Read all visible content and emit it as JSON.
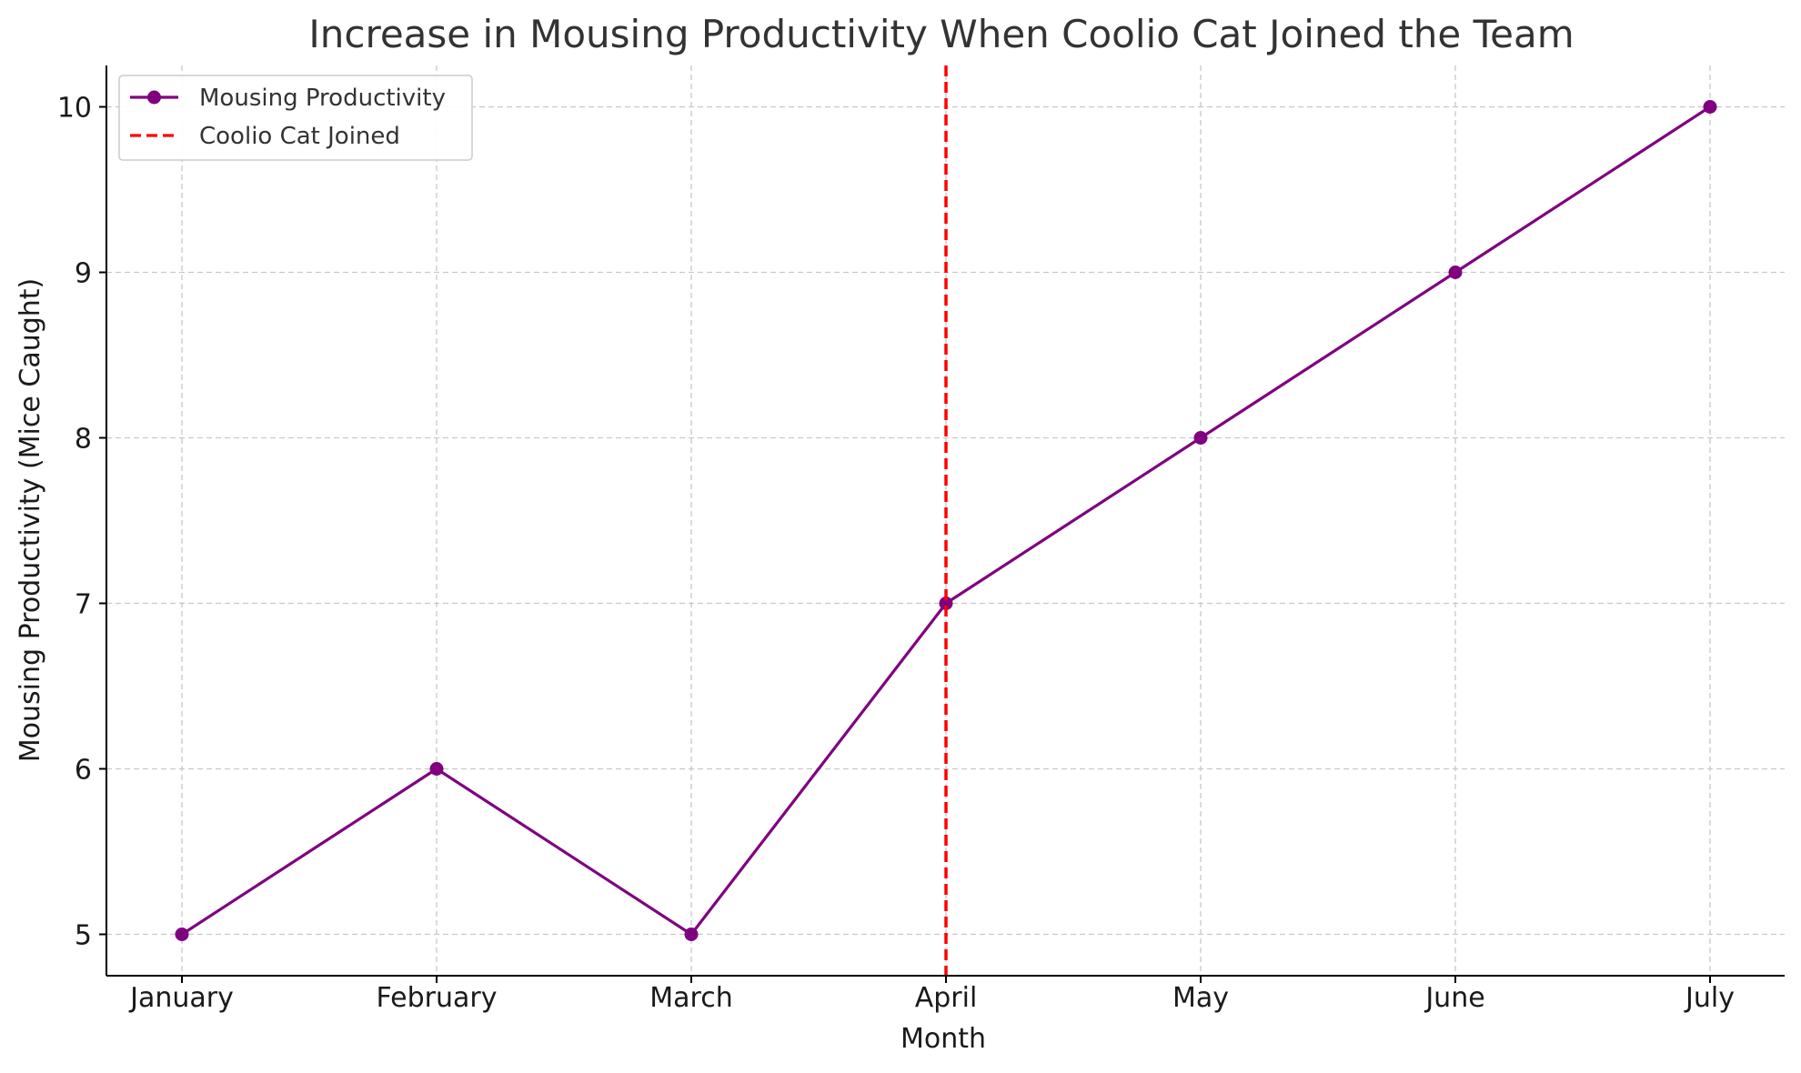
{
  "chart_data": {
    "type": "line",
    "title": "Increase in Mousing Productivity When Coolio Cat Joined the Team",
    "xlabel": "Month",
    "ylabel": "Mousing Productivity (Mice Caught)",
    "categories": [
      "January",
      "February",
      "March",
      "April",
      "May",
      "June",
      "July"
    ],
    "series": [
      {
        "name": "Mousing Productivity",
        "values": [
          5,
          6,
          5,
          7,
          8,
          9,
          10
        ],
        "color": "#800080",
        "marker": "circle",
        "line_style": "solid"
      }
    ],
    "reference_lines": [
      {
        "name": "Coolio Cat Joined",
        "orientation": "vertical",
        "x": "April",
        "color": "#ff0000",
        "line_style": "dashed"
      }
    ],
    "y_ticks": [
      5,
      6,
      7,
      8,
      9,
      10
    ],
    "y_tick_labels": [
      "5",
      "6",
      "7",
      "8",
      "9",
      "10"
    ],
    "ylim": [
      4.75,
      10.25
    ],
    "grid": true,
    "grid_style": "dashed",
    "grid_color": "#c8c8c8",
    "legend_position": "top-left"
  }
}
